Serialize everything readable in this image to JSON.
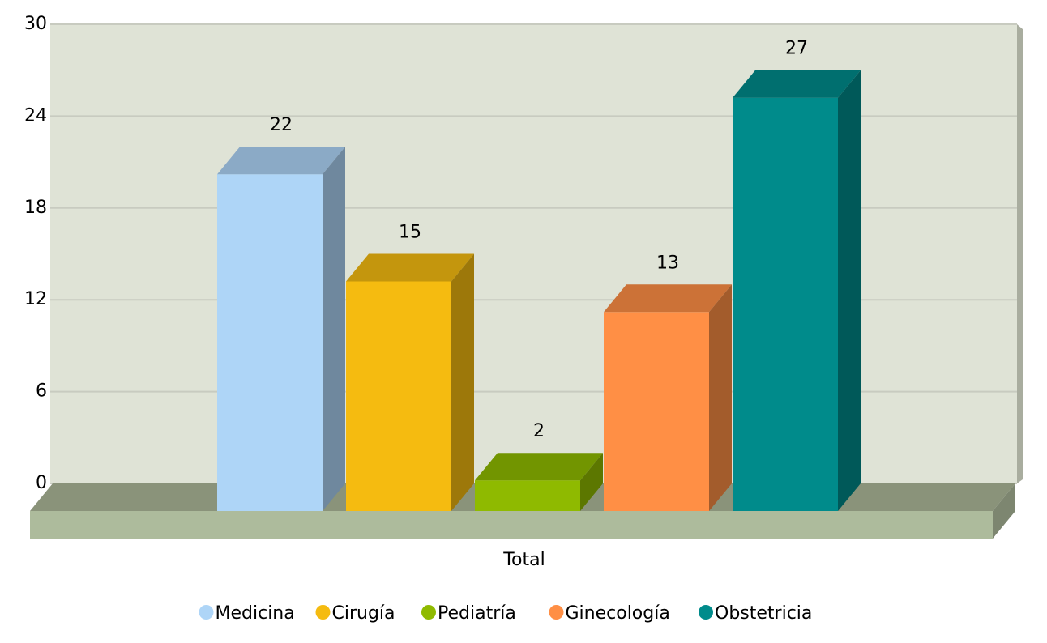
{
  "chart_data": {
    "type": "bar3d",
    "categories": [
      "Total"
    ],
    "series": [
      {
        "name": "Medicina",
        "color": "#aed5f7",
        "values": [
          22
        ]
      },
      {
        "name": "Cirugía",
        "color": "#f5bb10",
        "values": [
          15
        ]
      },
      {
        "name": "Pediatría",
        "color": "#8fba00",
        "values": [
          2
        ]
      },
      {
        "name": "Ginecología",
        "color": "#ff8f45",
        "values": [
          13
        ]
      },
      {
        "name": "Obstetricia",
        "color": "#008b8b",
        "values": [
          27
        ]
      }
    ],
    "ylim": [
      0,
      30
    ],
    "yticks": [
      0,
      6,
      12,
      18,
      24,
      30
    ],
    "grid": true,
    "legend": "bottom"
  }
}
